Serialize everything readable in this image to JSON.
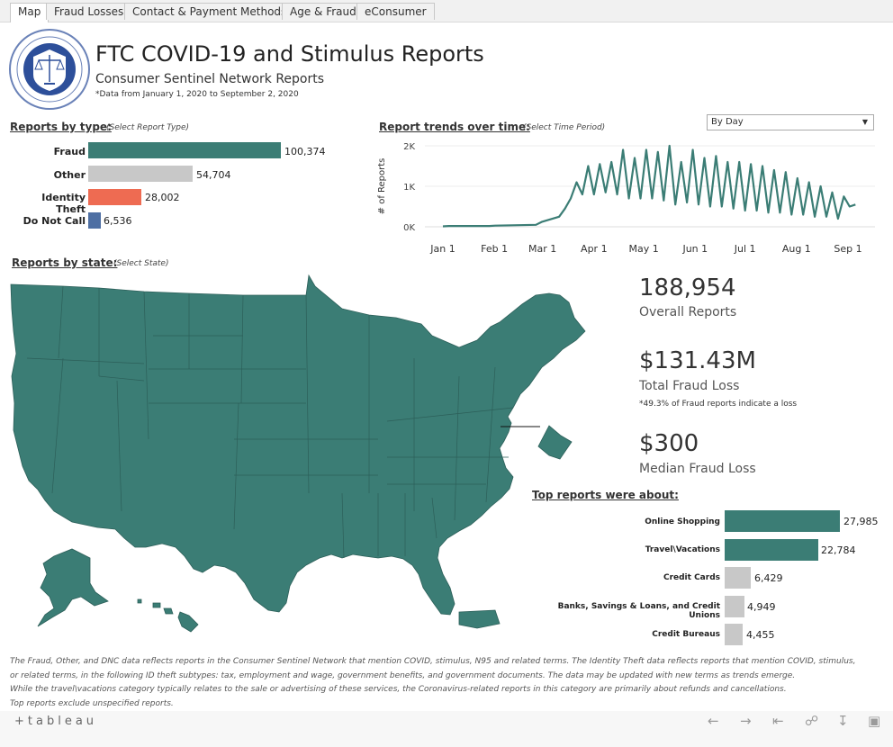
{
  "tabs": [
    {
      "label": "Map",
      "active": true
    },
    {
      "label": "Fraud Losses",
      "active": false
    },
    {
      "label": "Contact & Payment Methods",
      "active": false
    },
    {
      "label": "Age & Fraud",
      "active": false
    },
    {
      "label": "eConsumer",
      "active": false
    }
  ],
  "header": {
    "title": "FTC COVID-19 and Stimulus Reports",
    "subtitle": "Consumer Sentinel Network Reports",
    "date_range": "*Data from January 1, 2020 to September 2, 2020"
  },
  "report_types": {
    "heading": "Reports by type:",
    "hint": "(Select Report Type)",
    "items": [
      {
        "label": "Fraud",
        "value": 100374,
        "display": "100,374",
        "color": "#3b7d75"
      },
      {
        "label": "Other",
        "value": 54704,
        "display": "54,704",
        "color": "#c8c8c8"
      },
      {
        "label": "Identity Theft",
        "value": 28002,
        "display": "28,002",
        "color": "#ee6b52"
      },
      {
        "label": "Do Not Call",
        "value": 6536,
        "display": "6,536",
        "color": "#4e6fa3"
      }
    ]
  },
  "trends": {
    "heading": "Report trends over time:",
    "hint": "(Select Time Period)",
    "period": "By Day",
    "ylabel": "# of Reports",
    "yticks": [
      "2K",
      "1K",
      "0K"
    ]
  },
  "chart_data": {
    "type": "line",
    "x_ticks": [
      "Jan 1",
      "Feb 1",
      "Mar 1",
      "Apr 1",
      "May 1",
      "Jun 1",
      "Jul 1",
      "Aug 1",
      "Sep 1"
    ],
    "ylabel": "# of Reports",
    "ylim": [
      0,
      2000
    ],
    "color": "#3b7d75",
    "weekly_low_high": [
      {
        "week_of": "2020-01-01",
        "low": 10,
        "high": 20
      },
      {
        "week_of": "2020-01-29",
        "low": 20,
        "high": 30
      },
      {
        "week_of": "2020-02-26",
        "low": 50,
        "high": 120
      },
      {
        "week_of": "2020-03-11",
        "low": 250,
        "high": 450
      },
      {
        "week_of": "2020-03-18",
        "low": 700,
        "high": 1100
      },
      {
        "week_of": "2020-03-25",
        "low": 800,
        "high": 1500
      },
      {
        "week_of": "2020-04-01",
        "low": 800,
        "high": 1550
      },
      {
        "week_of": "2020-04-08",
        "low": 850,
        "high": 1600
      },
      {
        "week_of": "2020-04-15",
        "low": 800,
        "high": 1900
      },
      {
        "week_of": "2020-04-22",
        "low": 700,
        "high": 1700
      },
      {
        "week_of": "2020-04-29",
        "low": 700,
        "high": 1900
      },
      {
        "week_of": "2020-05-06",
        "low": 700,
        "high": 1850
      },
      {
        "week_of": "2020-05-13",
        "low": 650,
        "high": 2000
      },
      {
        "week_of": "2020-05-20",
        "low": 550,
        "high": 1600
      },
      {
        "week_of": "2020-05-27",
        "low": 600,
        "high": 1900
      },
      {
        "week_of": "2020-06-03",
        "low": 550,
        "high": 1700
      },
      {
        "week_of": "2020-06-10",
        "low": 500,
        "high": 1750
      },
      {
        "week_of": "2020-06-17",
        "low": 500,
        "high": 1600
      },
      {
        "week_of": "2020-06-24",
        "low": 450,
        "high": 1600
      },
      {
        "week_of": "2020-07-01",
        "low": 400,
        "high": 1550
      },
      {
        "week_of": "2020-07-08",
        "low": 400,
        "high": 1500
      },
      {
        "week_of": "2020-07-15",
        "low": 350,
        "high": 1400
      },
      {
        "week_of": "2020-07-22",
        "low": 350,
        "high": 1350
      },
      {
        "week_of": "2020-07-29",
        "low": 300,
        "high": 1200
      },
      {
        "week_of": "2020-08-05",
        "low": 300,
        "high": 1100
      },
      {
        "week_of": "2020-08-12",
        "low": 250,
        "high": 1000
      },
      {
        "week_of": "2020-08-19",
        "low": 250,
        "high": 850
      },
      {
        "week_of": "2020-08-26",
        "low": 200,
        "high": 750
      },
      {
        "week_of": "2020-09-02",
        "low": 500,
        "high": 550
      }
    ]
  },
  "map": {
    "heading": "Reports by state:",
    "hint": "(Select State)",
    "fill": "#3b7d75"
  },
  "stats": {
    "overall_value": "188,954",
    "overall_label": "Overall Reports",
    "loss_value": "$131.43M",
    "loss_label": "Total Fraud Loss",
    "loss_note": "*49.3% of Fraud reports indicate a loss",
    "median_value": "$300",
    "median_label": "Median Fraud Loss"
  },
  "top_reports": {
    "heading": "Top reports were about:",
    "items": [
      {
        "label": "Online Shopping",
        "value": 27985,
        "display": "27,985",
        "color": "#3b7d75"
      },
      {
        "label": "Travel\\Vacations",
        "value": 22784,
        "display": "22,784",
        "color": "#3b7d75"
      },
      {
        "label": "Credit Cards",
        "value": 6429,
        "display": "6,429",
        "color": "#c8c8c8"
      },
      {
        "label": "Banks, Savings & Loans, and Credit Unions",
        "value": 4949,
        "display": "4,949",
        "color": "#c8c8c8"
      },
      {
        "label": "Credit Bureaus",
        "value": 4455,
        "display": "4,455",
        "color": "#c8c8c8"
      }
    ]
  },
  "footer": {
    "lines": [
      "The Fraud, Other, and DNC data reflects reports in the Consumer Sentinel Network that mention COVID, stimulus, N95 and related terms.  The Identity Theft data reflects reports that mention COVID, stimulus,",
      "or related terms, in the following ID theft subtypes:  tax, employment and wage, government benefits, and government documents.  The data may be updated with new terms as trends emerge.",
      "While the travel\\vacations category typically relates to the sale or advertising of these services, the Coronavirus-related reports in this category are primarily about refunds and cancellations.",
      "Top reports exclude unspecified reports."
    ]
  },
  "toolbar": {
    "logo": "+tableau",
    "icons": [
      "undo-icon",
      "redo-icon",
      "revert-icon",
      "share-icon",
      "download-icon",
      "fullscreen-icon"
    ]
  }
}
